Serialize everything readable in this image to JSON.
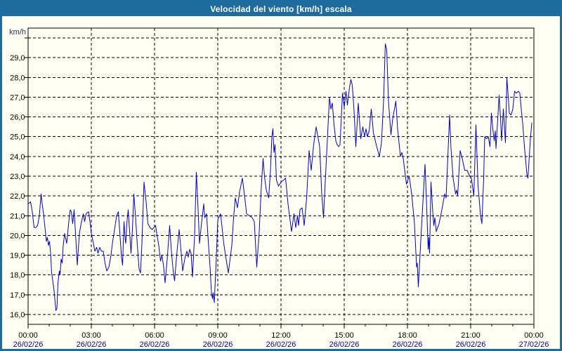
{
  "title": "Velocidad del viento [km/h] escala",
  "colors": {
    "frame_blue": "#1E6B9E",
    "background": "#FFFFF4",
    "title_text": "#FFFFFF",
    "grid": "#000000",
    "axis_text": "#000000",
    "date_text": "#00008B",
    "unit_text": "#1F3864",
    "line": "#0000CC"
  },
  "y_axis": {
    "unit_label": "km/h",
    "ticks": [
      {
        "value": 30,
        "label": ""
      },
      {
        "value": 29,
        "label": "29,0"
      },
      {
        "value": 28,
        "label": "28,0"
      },
      {
        "value": 27,
        "label": "27,0"
      },
      {
        "value": 26,
        "label": "26,0"
      },
      {
        "value": 25,
        "label": "25,0"
      },
      {
        "value": 24,
        "label": "24,0"
      },
      {
        "value": 23,
        "label": "23,0"
      },
      {
        "value": 22,
        "label": "22,0"
      },
      {
        "value": 21,
        "label": "21,0"
      },
      {
        "value": 20,
        "label": "20,0"
      },
      {
        "value": 19,
        "label": "19,0"
      },
      {
        "value": 18,
        "label": "18,0"
      },
      {
        "value": 17,
        "label": "17,0"
      },
      {
        "value": 16,
        "label": "16,0"
      }
    ]
  },
  "x_axis": {
    "minor_step_minutes": 60,
    "ticks": [
      {
        "minutes": 0,
        "time": "00:00",
        "date": "26/02/26"
      },
      {
        "minutes": 180,
        "time": "03:00",
        "date": "26/02/26"
      },
      {
        "minutes": 360,
        "time": "06:00",
        "date": "26/02/26"
      },
      {
        "minutes": 540,
        "time": "09:00",
        "date": "26/02/26"
      },
      {
        "minutes": 720,
        "time": "12:00",
        "date": "26/02/26"
      },
      {
        "minutes": 900,
        "time": "15:00",
        "date": "26/02/26"
      },
      {
        "minutes": 1080,
        "time": "18:00",
        "date": "26/02/26"
      },
      {
        "minutes": 1260,
        "time": "21:00",
        "date": "26/02/26"
      },
      {
        "minutes": 1440,
        "time": "00:00",
        "date": "27/02/26"
      }
    ]
  },
  "chart_data": {
    "type": "line",
    "title": "Velocidad del viento [km/h] escala",
    "ylabel": "km/h",
    "ylim": [
      15.5,
      30.5
    ],
    "xlim_minutes": [
      0,
      1440
    ],
    "grid": true,
    "legend": "none",
    "series": [
      {
        "name": "Velocidad del viento [km/h]",
        "color": "#0000CC",
        "x_unit": "minutes since 26/02/26 00:00",
        "points": [
          [
            0,
            21.6
          ],
          [
            7,
            21.7
          ],
          [
            12,
            21.2
          ],
          [
            17,
            20.4
          ],
          [
            22,
            20.4
          ],
          [
            27,
            20.5
          ],
          [
            32,
            21.0
          ],
          [
            37,
            22.1
          ],
          [
            40,
            21.6
          ],
          [
            44,
            21.1
          ],
          [
            48,
            20.4
          ],
          [
            52,
            19.7
          ],
          [
            55,
            19.9
          ],
          [
            58,
            19.5
          ],
          [
            61,
            19.7
          ],
          [
            64,
            19.1
          ],
          [
            67,
            18.1
          ],
          [
            71,
            17.6
          ],
          [
            74,
            17.2
          ],
          [
            79,
            16.2
          ],
          [
            82,
            16.3
          ],
          [
            85,
            17.6
          ],
          [
            89,
            18.2
          ],
          [
            91,
            18.0
          ],
          [
            94,
            18.8
          ],
          [
            97,
            18.6
          ],
          [
            100,
            19.5
          ],
          [
            104,
            20.1
          ],
          [
            110,
            19.6
          ],
          [
            117,
            20.9
          ],
          [
            120,
            21.3
          ],
          [
            123,
            21.2
          ],
          [
            127,
            20.6
          ],
          [
            131,
            21.3
          ],
          [
            136,
            19.8
          ],
          [
            140,
            18.5
          ],
          [
            146,
            20.1
          ],
          [
            151,
            20.6
          ],
          [
            157,
            21.1
          ],
          [
            161,
            20.7
          ],
          [
            165,
            21.1
          ],
          [
            172,
            21.2
          ],
          [
            177,
            20.6
          ],
          [
            180,
            20.1
          ],
          [
            186,
            19.6
          ],
          [
            190,
            19.2
          ],
          [
            195,
            19.4
          ],
          [
            199,
            19.1
          ],
          [
            204,
            19.4
          ],
          [
            209,
            19.2
          ],
          [
            214,
            19.2
          ],
          [
            219,
            18.6
          ],
          [
            224,
            18.2
          ],
          [
            230,
            18.4
          ],
          [
            236,
            19.0
          ],
          [
            240,
            19.6
          ],
          [
            247,
            20.4
          ],
          [
            252,
            21.0
          ],
          [
            257,
            21.2
          ],
          [
            262,
            19.9
          ],
          [
            266,
            18.9
          ],
          [
            269,
            18.5
          ],
          [
            273,
            20.7
          ],
          [
            276,
            19.9
          ],
          [
            278,
            19.6
          ],
          [
            281,
            20.6
          ],
          [
            285,
            21.3
          ],
          [
            289,
            20.2
          ],
          [
            293,
            19.1
          ],
          [
            297,
            20.3
          ],
          [
            301,
            22.1
          ],
          [
            306,
            20.9
          ],
          [
            311,
            19.5
          ],
          [
            316,
            18.3
          ],
          [
            320,
            18.1
          ],
          [
            324,
            19.6
          ],
          [
            330,
            22.7
          ],
          [
            336,
            21.7
          ],
          [
            341,
            20.6
          ],
          [
            347,
            20.4
          ],
          [
            353,
            20.3
          ],
          [
            358,
            20.4
          ],
          [
            363,
            20.5
          ],
          [
            368,
            19.9
          ],
          [
            372,
            19.5
          ],
          [
            377,
            18.7
          ],
          [
            381,
            19.0
          ],
          [
            386,
            18.4
          ],
          [
            390,
            17.6
          ],
          [
            396,
            18.8
          ],
          [
            403,
            20.5
          ],
          [
            408,
            19.2
          ],
          [
            413,
            18.2
          ],
          [
            417,
            17.7
          ],
          [
            423,
            19.0
          ],
          [
            430,
            20.3
          ],
          [
            435,
            19.3
          ],
          [
            440,
            18.2
          ],
          [
            447,
            18.9
          ],
          [
            452,
            19.2
          ],
          [
            456,
            18.9
          ],
          [
            460,
            19.3
          ],
          [
            464,
            19.1
          ],
          [
            468,
            17.9
          ],
          [
            474,
            20.0
          ],
          [
            479,
            23.2
          ],
          [
            484,
            21.3
          ],
          [
            488,
            19.6
          ],
          [
            493,
            20.5
          ],
          [
            500,
            21.6
          ],
          [
            503,
            20.9
          ],
          [
            508,
            21.1
          ],
          [
            513,
            19.7
          ],
          [
            518,
            18.4
          ],
          [
            522,
            17.1
          ],
          [
            525,
            16.8
          ],
          [
            527,
            17.1
          ],
          [
            530,
            16.6
          ],
          [
            535,
            18.5
          ],
          [
            540,
            20.8
          ],
          [
            548,
            21.1
          ],
          [
            557,
            19.6
          ],
          [
            562,
            19.0
          ],
          [
            570,
            18.1
          ],
          [
            580,
            19.5
          ],
          [
            585,
            20.9
          ],
          [
            590,
            21.9
          ],
          [
            596,
            21.4
          ],
          [
            602,
            22.2
          ],
          [
            610,
            22.9
          ],
          [
            617,
            21.9
          ],
          [
            622,
            21.1
          ],
          [
            630,
            21.0
          ],
          [
            638,
            20.9
          ],
          [
            644,
            20.7
          ],
          [
            651,
            18.4
          ],
          [
            658,
            20.2
          ],
          [
            664,
            22.5
          ],
          [
            669,
            23.9
          ],
          [
            673,
            23.0
          ],
          [
            678,
            22.3
          ],
          [
            685,
            21.9
          ],
          [
            690,
            23.3
          ],
          [
            694,
            25.0
          ],
          [
            697,
            25.4
          ],
          [
            700,
            24.2
          ],
          [
            703,
            24.6
          ],
          [
            707,
            22.8
          ],
          [
            713,
            22.5
          ],
          [
            720,
            22.7
          ],
          [
            727,
            22.8
          ],
          [
            733,
            22.9
          ],
          [
            740,
            21.6
          ],
          [
            750,
            20.2
          ],
          [
            757,
            21.1
          ],
          [
            762,
            20.4
          ],
          [
            767,
            21.0
          ],
          [
            770,
            20.5
          ],
          [
            774,
            21.3
          ],
          [
            780,
            21.4
          ],
          [
            786,
            20.5
          ],
          [
            793,
            21.9
          ],
          [
            800,
            24.3
          ],
          [
            806,
            23.3
          ],
          [
            813,
            24.6
          ],
          [
            820,
            25.5
          ],
          [
            826,
            24.9
          ],
          [
            830,
            24.5
          ],
          [
            836,
            22.1
          ],
          [
            841,
            20.9
          ],
          [
            849,
            23.8
          ],
          [
            858,
            27.0
          ],
          [
            862,
            26.4
          ],
          [
            866,
            26.7
          ],
          [
            871,
            25.6
          ],
          [
            876,
            24.8
          ],
          [
            880,
            24.6
          ],
          [
            884,
            24.5
          ],
          [
            888,
            24.6
          ],
          [
            895,
            27.2
          ],
          [
            900,
            26.5
          ],
          [
            905,
            27.3
          ],
          [
            909,
            26.6
          ],
          [
            915,
            27.5
          ],
          [
            919,
            27.9
          ],
          [
            923,
            27.6
          ],
          [
            928,
            26.3
          ],
          [
            933,
            24.5
          ],
          [
            940,
            26.7
          ],
          [
            947,
            24.9
          ],
          [
            953,
            25.5
          ],
          [
            958,
            25.0
          ],
          [
            962,
            25.4
          ],
          [
            966,
            25.0
          ],
          [
            971,
            25.3
          ],
          [
            977,
            26.4
          ],
          [
            983,
            25.2
          ],
          [
            991,
            24.6
          ],
          [
            1000,
            24.0
          ],
          [
            1006,
            24.7
          ],
          [
            1012,
            26.8
          ],
          [
            1017,
            29.7
          ],
          [
            1021,
            29.4
          ],
          [
            1026,
            26.8
          ],
          [
            1033,
            25.1
          ],
          [
            1038,
            25.9
          ],
          [
            1047,
            26.8
          ],
          [
            1052,
            25.4
          ],
          [
            1060,
            24.0
          ],
          [
            1064,
            24.2
          ],
          [
            1068,
            23.9
          ],
          [
            1077,
            22.6
          ],
          [
            1085,
            23.0
          ],
          [
            1092,
            22.1
          ],
          [
            1100,
            20.6
          ],
          [
            1106,
            18.4
          ],
          [
            1108,
            18.6
          ],
          [
            1111,
            17.4
          ],
          [
            1120,
            20.4
          ],
          [
            1130,
            23.6
          ],
          [
            1134,
            21.8
          ],
          [
            1139,
            19.3
          ],
          [
            1141,
            19.9
          ],
          [
            1143,
            19.1
          ],
          [
            1147,
            22.7
          ],
          [
            1152,
            21.2
          ],
          [
            1155,
            20.5
          ],
          [
            1158,
            20.9
          ],
          [
            1162,
            20.2
          ],
          [
            1170,
            20.6
          ],
          [
            1178,
            21.3
          ],
          [
            1186,
            22.1
          ],
          [
            1190,
            21.9
          ],
          [
            1200,
            26.1
          ],
          [
            1204,
            24.4
          ],
          [
            1210,
            22.9
          ],
          [
            1217,
            22.1
          ],
          [
            1220,
            22.3
          ],
          [
            1223,
            22.0
          ],
          [
            1230,
            24.3
          ],
          [
            1236,
            23.9
          ],
          [
            1243,
            23.3
          ],
          [
            1250,
            23.3
          ],
          [
            1257,
            23.0
          ],
          [
            1262,
            22.9
          ],
          [
            1269,
            22.0
          ],
          [
            1275,
            25.6
          ],
          [
            1281,
            22.5
          ],
          [
            1284,
            21.9
          ],
          [
            1288,
            21.0
          ],
          [
            1292,
            20.6
          ],
          [
            1297,
            22.9
          ],
          [
            1300,
            25.0
          ],
          [
            1305,
            24.9
          ],
          [
            1310,
            25.0
          ],
          [
            1315,
            24.5
          ],
          [
            1319,
            26.2
          ],
          [
            1323,
            25.4
          ],
          [
            1327,
            24.8
          ],
          [
            1330,
            25.3
          ],
          [
            1332,
            24.4
          ],
          [
            1338,
            26.2
          ],
          [
            1341,
            27.1
          ],
          [
            1345,
            25.9
          ],
          [
            1348,
            24.8
          ],
          [
            1353,
            26.4
          ],
          [
            1359,
            24.7
          ],
          [
            1363,
            28.0
          ],
          [
            1367,
            27.0
          ],
          [
            1370,
            26.2
          ],
          [
            1375,
            26.1
          ],
          [
            1380,
            26.4
          ],
          [
            1385,
            27.3
          ],
          [
            1390,
            27.2
          ],
          [
            1396,
            27.3
          ],
          [
            1400,
            27.2
          ],
          [
            1405,
            26.2
          ],
          [
            1408,
            25.7
          ],
          [
            1413,
            24.5
          ],
          [
            1417,
            23.7
          ],
          [
            1420,
            23.1
          ],
          [
            1423,
            22.9
          ],
          [
            1430,
            24.9
          ],
          [
            1434,
            25.7
          ]
        ]
      }
    ]
  }
}
